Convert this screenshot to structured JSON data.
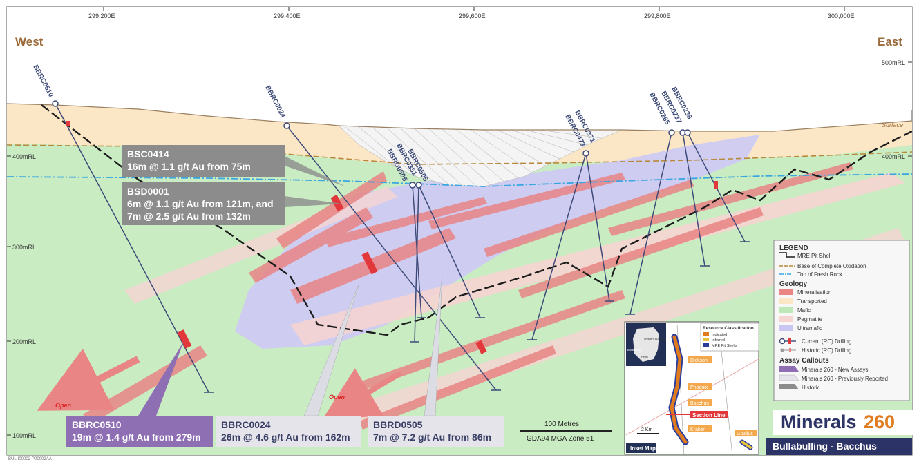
{
  "header": {
    "west": "West",
    "east": "East",
    "eastings": [
      "299,200E",
      "299,400E",
      "299,600E",
      "299,800E",
      "300,000E"
    ]
  },
  "rl_labels": {
    "left": [
      "400mRL",
      "300mRL",
      "200mRL",
      "100mRL"
    ],
    "right": [
      "500mRL",
      "400mRL"
    ]
  },
  "surface_label": "Surface",
  "open_labels": [
    "Open",
    "Open"
  ],
  "holes": [
    "BBRC0510",
    "BBRC0024",
    "BBRD0505",
    "BBRC0351",
    "BBRC0505",
    "BBRC0473",
    "BBRC0371",
    "BBRC0265",
    "BBRC0237",
    "BBRC0238"
  ],
  "callouts": {
    "bsc0414": {
      "title": "BSC0414",
      "line1": "16m @ 1.1 g/t Au from 75m"
    },
    "bsd0001": {
      "title": "BSD0001",
      "line1": "6m @ 1.1 g/t Au from 121m, and",
      "line2": "7m @ 2.5 g/t Au from 132m"
    },
    "bbrc0510": {
      "title": "BBRC0510",
      "line1": "19m @ 1.4 g/t Au from 279m"
    },
    "bbrc0024": {
      "title": "BBRC0024",
      "line1": "26m @ 4.6 g/t Au from 162m"
    },
    "bbrd0505": {
      "title": "BBRD0505",
      "line1": "7m @ 7.2 g/t Au from 86m"
    }
  },
  "scale": {
    "label": "100 Metres",
    "projection": "GDA94 MGA Zone 51"
  },
  "legend": {
    "title": "LEGEND",
    "lines": [
      "MRE Pit Shell",
      "Base of Complete Oxidation",
      "Top of Fresh Rock"
    ],
    "geology_title": "Geology",
    "geology": [
      {
        "label": "Mineralisation",
        "color": "#e98585"
      },
      {
        "label": "Transported",
        "color": "#fbe6c6"
      },
      {
        "label": "Mafic",
        "color": "#bfe8b8"
      },
      {
        "label": "Pegmatite",
        "color": "#f6d4d2"
      },
      {
        "label": "Ultramafic",
        "color": "#c9c6f2"
      }
    ],
    "drilling": [
      "Current (RC) Drilling",
      "Historic (RC) Drilling"
    ],
    "assay_title": "Assay Callouts",
    "assay": [
      {
        "label": "Minerals 260 - New Assays",
        "color": "#8f6fb3"
      },
      {
        "label": "Minerals 260 - Previously Reported",
        "color": "#e4e4ea"
      },
      {
        "label": "Historic",
        "color": "#8c8c8c"
      }
    ]
  },
  "inset": {
    "title": "Inset Map",
    "classification_title": "Resource Classification",
    "classes": [
      {
        "label": "Indicated",
        "color": "#e07b20"
      },
      {
        "label": "Inferred",
        "color": "#e8c23a"
      },
      {
        "label": "MRE Pit Shells",
        "color": "#2a3d9c"
      }
    ],
    "deposits": [
      "Dickson",
      "Phoenix",
      "Bacchus",
      "Kraken",
      "Gladius"
    ],
    "section_line": "Section Line",
    "scale": "2 Km",
    "mini_labels": [
      "Western Australia",
      "Bullabulling",
      "Perth"
    ]
  },
  "brand": {
    "name": "Minerals",
    "number": "260",
    "project": "Bullabulling - Bacchus"
  },
  "footer_code": "BUL-I00002-P00002AA"
}
